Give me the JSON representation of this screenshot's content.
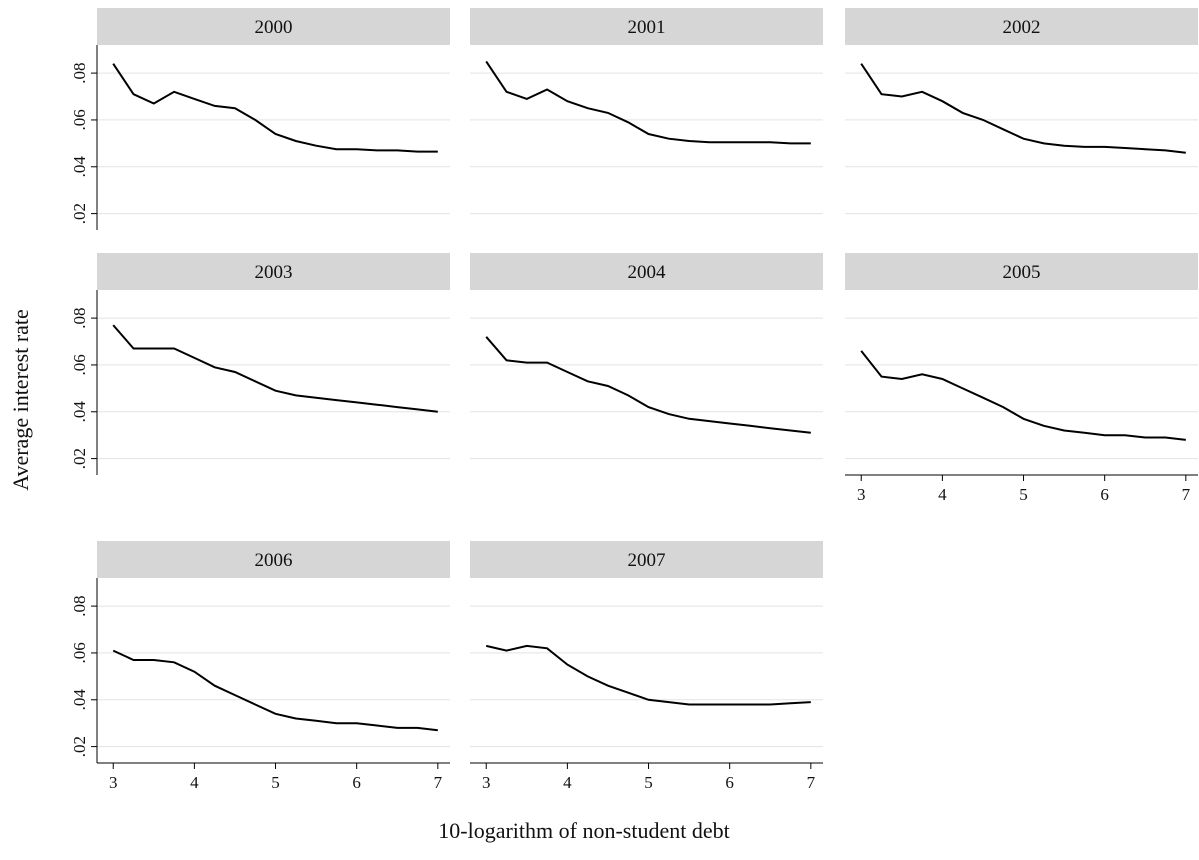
{
  "chart_data": [
    {
      "type": "line",
      "title": "2000",
      "x": [
        3,
        3.25,
        3.5,
        3.75,
        4,
        4.25,
        4.5,
        4.75,
        5,
        5.25,
        5.5,
        5.75,
        6,
        6.25,
        6.5,
        6.75,
        7
      ],
      "values": [
        0.084,
        0.071,
        0.067,
        0.072,
        0.069,
        0.066,
        0.065,
        0.06,
        0.054,
        0.051,
        0.049,
        0.0475,
        0.0475,
        0.047,
        0.047,
        0.0465,
        0.0465
      ],
      "color": "#000000",
      "xlim": [
        2.8,
        7.15
      ],
      "ylim": [
        0.013,
        0.092
      ],
      "yticks": [
        {
          "value": 0.02,
          "label": ".02"
        },
        {
          "value": 0.04,
          "label": ".04"
        },
        {
          "value": 0.06,
          "label": ".06"
        },
        {
          "value": 0.08,
          "label": ".08"
        }
      ],
      "grid": true
    },
    {
      "type": "line",
      "title": "2001",
      "x": [
        3,
        3.25,
        3.5,
        3.75,
        4,
        4.25,
        4.5,
        4.75,
        5,
        5.25,
        5.5,
        5.75,
        6,
        6.25,
        6.5,
        6.75,
        7
      ],
      "values": [
        0.085,
        0.072,
        0.069,
        0.073,
        0.068,
        0.065,
        0.063,
        0.059,
        0.054,
        0.052,
        0.051,
        0.0505,
        0.0505,
        0.0505,
        0.0505,
        0.05,
        0.05
      ],
      "color": "#000000",
      "xlim": [
        2.8,
        7.15
      ],
      "ylim": [
        0.013,
        0.092
      ],
      "yticks": [
        0.02,
        0.04,
        0.06,
        0.08
      ],
      "grid": true
    },
    {
      "type": "line",
      "title": "2002",
      "x": [
        3,
        3.25,
        3.5,
        3.75,
        4,
        4.25,
        4.5,
        4.75,
        5,
        5.25,
        5.5,
        5.75,
        6,
        6.25,
        6.5,
        6.75,
        7
      ],
      "values": [
        0.084,
        0.071,
        0.07,
        0.072,
        0.068,
        0.063,
        0.06,
        0.056,
        0.052,
        0.05,
        0.049,
        0.0485,
        0.0485,
        0.048,
        0.0475,
        0.047,
        0.046
      ],
      "color": "#000000",
      "xlim": [
        2.8,
        7.15
      ],
      "ylim": [
        0.013,
        0.092
      ],
      "yticks": [
        0.02,
        0.04,
        0.06,
        0.08
      ],
      "grid": true
    },
    {
      "type": "line",
      "title": "2003",
      "x": [
        3,
        3.25,
        3.5,
        3.75,
        4,
        4.25,
        4.5,
        4.75,
        5,
        5.25,
        5.5,
        5.75,
        6,
        6.25,
        6.5,
        6.75,
        7
      ],
      "values": [
        0.077,
        0.067,
        0.067,
        0.067,
        0.063,
        0.059,
        0.057,
        0.053,
        0.049,
        0.047,
        0.046,
        0.045,
        0.044,
        0.043,
        0.042,
        0.041,
        0.04
      ],
      "color": "#000000",
      "xlim": [
        2.8,
        7.15
      ],
      "ylim": [
        0.013,
        0.092
      ],
      "yticks": [
        {
          "value": 0.02,
          "label": ".02"
        },
        {
          "value": 0.04,
          "label": ".04"
        },
        {
          "value": 0.06,
          "label": ".06"
        },
        {
          "value": 0.08,
          "label": ".08"
        }
      ],
      "grid": true
    },
    {
      "type": "line",
      "title": "2004",
      "x": [
        3,
        3.25,
        3.5,
        3.75,
        4,
        4.25,
        4.5,
        4.75,
        5,
        5.25,
        5.5,
        5.75,
        6,
        6.25,
        6.5,
        6.75,
        7
      ],
      "values": [
        0.072,
        0.062,
        0.061,
        0.061,
        0.057,
        0.053,
        0.051,
        0.047,
        0.042,
        0.039,
        0.037,
        0.036,
        0.035,
        0.034,
        0.033,
        0.032,
        0.031
      ],
      "color": "#000000",
      "xlim": [
        2.8,
        7.15
      ],
      "ylim": [
        0.013,
        0.092
      ],
      "yticks": [
        0.02,
        0.04,
        0.06,
        0.08
      ],
      "grid": true
    },
    {
      "type": "line",
      "title": "2005",
      "x": [
        3,
        3.25,
        3.5,
        3.75,
        4,
        4.25,
        4.5,
        4.75,
        5,
        5.25,
        5.5,
        5.75,
        6,
        6.25,
        6.5,
        6.75,
        7
      ],
      "values": [
        0.066,
        0.055,
        0.054,
        0.056,
        0.054,
        0.05,
        0.046,
        0.042,
        0.037,
        0.034,
        0.032,
        0.031,
        0.03,
        0.03,
        0.029,
        0.029,
        0.028
      ],
      "color": "#000000",
      "xlim": [
        2.8,
        7.15
      ],
      "xticks": [
        3,
        4,
        5,
        6,
        7
      ],
      "ylim": [
        0.013,
        0.092
      ],
      "yticks": [
        0.02,
        0.04,
        0.06,
        0.08
      ],
      "grid": true
    },
    {
      "type": "line",
      "title": "2006",
      "x": [
        3,
        3.25,
        3.5,
        3.75,
        4,
        4.25,
        4.5,
        4.75,
        5,
        5.25,
        5.5,
        5.75,
        6,
        6.25,
        6.5,
        6.75,
        7
      ],
      "values": [
        0.061,
        0.057,
        0.057,
        0.056,
        0.052,
        0.046,
        0.042,
        0.038,
        0.034,
        0.032,
        0.031,
        0.03,
        0.03,
        0.029,
        0.028,
        0.028,
        0.027
      ],
      "color": "#000000",
      "xlim": [
        2.8,
        7.15
      ],
      "xticks": [
        3,
        4,
        5,
        6,
        7
      ],
      "ylim": [
        0.013,
        0.092
      ],
      "yticks": [
        {
          "value": 0.02,
          "label": ".02"
        },
        {
          "value": 0.04,
          "label": ".04"
        },
        {
          "value": 0.06,
          "label": ".06"
        },
        {
          "value": 0.08,
          "label": ".08"
        }
      ],
      "grid": true
    },
    {
      "type": "line",
      "title": "2007",
      "x": [
        3,
        3.25,
        3.5,
        3.75,
        4,
        4.25,
        4.5,
        4.75,
        5,
        5.25,
        5.5,
        5.75,
        6,
        6.25,
        6.5,
        6.75,
        7
      ],
      "values": [
        0.063,
        0.061,
        0.063,
        0.062,
        0.055,
        0.05,
        0.046,
        0.043,
        0.04,
        0.039,
        0.038,
        0.038,
        0.038,
        0.038,
        0.038,
        0.0385,
        0.039
      ],
      "color": "#000000",
      "xlim": [
        2.8,
        7.15
      ],
      "xticks": [
        3,
        4,
        5,
        6,
        7
      ],
      "ylim": [
        0.013,
        0.092
      ],
      "yticks": [
        0.02,
        0.04,
        0.06,
        0.08
      ],
      "grid": true
    }
  ],
  "shared_axes": {
    "x_label": "10-logarithm of non-student debt",
    "y_label": "Average interest rate"
  }
}
